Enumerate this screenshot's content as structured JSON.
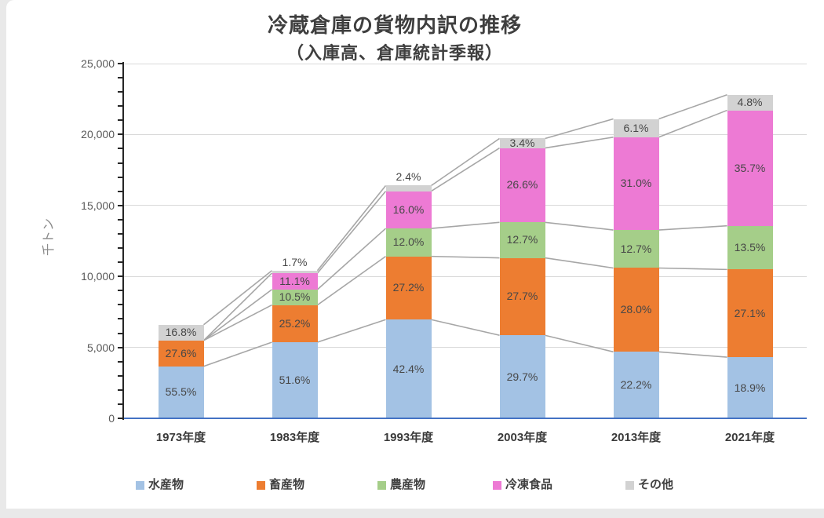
{
  "page": {
    "background": "#e9e9e9",
    "card_background": "#ffffff"
  },
  "chart_data": {
    "type": "bar",
    "subtype": "stacked-column-with-series-lines",
    "title": "冷蔵倉庫の貨物内訳の推移",
    "subtitle": "（入庫高、倉庫統計季報）",
    "ylabel": "千トン",
    "ylim": [
      0,
      25000
    ],
    "ytick_step": 5000,
    "ytick_labels": [
      "0",
      "5,000",
      "10,000",
      "15,000",
      "20,000",
      "25,000"
    ],
    "minor_tick_step": 1000,
    "grid": "horizontal",
    "legend_position": "bottom",
    "series_lines": true,
    "categories": [
      "1973年度",
      "1983年度",
      "1993年度",
      "2003年度",
      "2013年度",
      "2021年度"
    ],
    "totals_kilotons": [
      6600,
      10400,
      16400,
      19700,
      21100,
      22800
    ],
    "series": [
      {
        "name": "水産物",
        "color": "#A3C2E4",
        "pct": [
          55.5,
          51.6,
          42.4,
          29.7,
          22.2,
          18.9
        ],
        "labels": [
          "55.5%",
          "51.6%",
          "42.4%",
          "29.7%",
          "22.2%",
          "18.9%"
        ]
      },
      {
        "name": "畜産物",
        "color": "#ED7D31",
        "pct": [
          27.6,
          25.2,
          27.2,
          27.7,
          28.0,
          27.1
        ],
        "labels": [
          "27.6%",
          "25.2%",
          "27.2%",
          "27.7%",
          "28.0%",
          "27.1%"
        ]
      },
      {
        "name": "農産物",
        "color": "#A5CE89",
        "pct": [
          0,
          10.5,
          12.0,
          12.7,
          12.7,
          13.5
        ],
        "labels": [
          null,
          "10.5%",
          "12.0%",
          "12.7%",
          "12.7%",
          "13.5%"
        ]
      },
      {
        "name": "冷凍食品",
        "color": "#ED7AD4",
        "pct": [
          0,
          11.1,
          16.0,
          26.6,
          31.0,
          35.7
        ],
        "labels": [
          null,
          "11.1%",
          "16.0%",
          "26.6%",
          "31.0%",
          "35.7%"
        ]
      },
      {
        "name": "その他",
        "color": "#D2D2D2",
        "pct": [
          16.8,
          1.7,
          2.4,
          3.4,
          6.1,
          4.8
        ],
        "labels": [
          "16.8%",
          "1.7%",
          "2.4%",
          "3.4%",
          "6.1%",
          "4.8%"
        ]
      }
    ],
    "colors": {
      "gridline": "#D9D9D9",
      "series_line": "#A6A6A6",
      "y_axis_line": "#262626",
      "tick_mark": "#262626",
      "x_axis_line": "#4472C4",
      "data_label": "#474747",
      "axis_tick_label": "#595959",
      "category_label": "#3A3A3A",
      "title": "#3F3F3F",
      "legend_label": "#404040",
      "y_axis_title": "#8A8A8A"
    }
  }
}
